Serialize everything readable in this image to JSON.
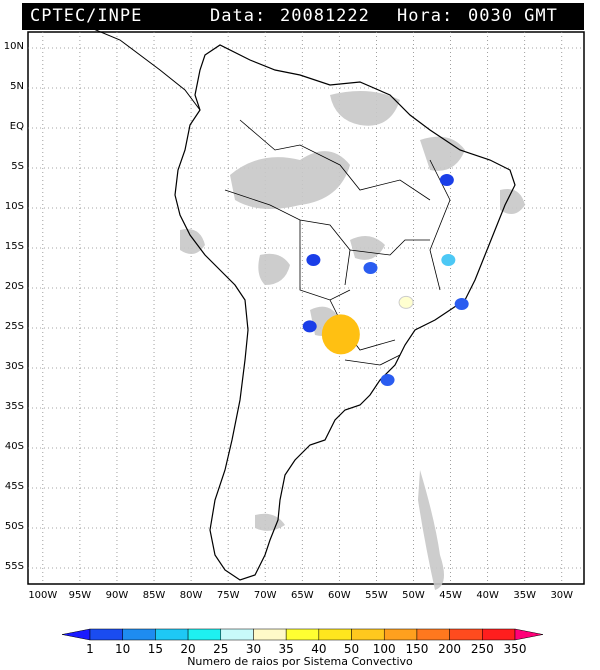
{
  "header": {
    "source": "CPTEC/INPE",
    "date_label": "Data:",
    "date_value": "20081222",
    "hour_label": "Hora:",
    "hour_value": "0030 GMT"
  },
  "map": {
    "lat_labels": [
      "10N",
      "5N",
      "EQ",
      "5S",
      "10S",
      "15S",
      "20S",
      "25S",
      "30S",
      "35S",
      "40S",
      "45S",
      "50S",
      "55S"
    ],
    "lon_labels": [
      "100W",
      "95W",
      "90W",
      "85W",
      "80W",
      "75W",
      "70W",
      "65W",
      "60W",
      "55W",
      "50W",
      "45W",
      "40W",
      "35W",
      "30W"
    ],
    "colors": {
      "land_fill": "#ffffff",
      "cloud_gray": "#c8c8c8",
      "border": "#000000",
      "grid": "#888888"
    },
    "storm_cells": [
      {
        "lon": -45.5,
        "lat": -6.5,
        "color": "#1a3ee8"
      },
      {
        "lon": -63.5,
        "lat": -16.5,
        "color": "#1a3ee8"
      },
      {
        "lon": -55.8,
        "lat": -17.5,
        "color": "#2a5cf0"
      },
      {
        "lon": -45.3,
        "lat": -16.5,
        "color": "#4cc8f5"
      },
      {
        "lon": -51.0,
        "lat": -21.8,
        "color": "#ffffd0"
      },
      {
        "lon": -43.5,
        "lat": -22.0,
        "color": "#2a5cf0"
      },
      {
        "lon": -59.8,
        "lat": -25.8,
        "color": "#ffc012"
      },
      {
        "lon": -64.0,
        "lat": -24.8,
        "color": "#1a3ee8"
      },
      {
        "lon": -53.5,
        "lat": -31.5,
        "color": "#2a5cf0"
      }
    ]
  },
  "legend": {
    "ticks": [
      "1",
      "10",
      "15",
      "20",
      "25",
      "30",
      "35",
      "40",
      "50",
      "100",
      "150",
      "200",
      "250",
      "350"
    ],
    "colors": [
      "#1a1aff",
      "#1a4cf0",
      "#1e8cf0",
      "#1ec8f5",
      "#1ef0f0",
      "#c8fafa",
      "#fffac8",
      "#ffff32",
      "#ffe61e",
      "#ffc81e",
      "#ffa01e",
      "#ff781e",
      "#ff4b1e",
      "#ff1e1e",
      "#ff0078"
    ],
    "title": "Numero de raios por Sistema Convectivo"
  }
}
